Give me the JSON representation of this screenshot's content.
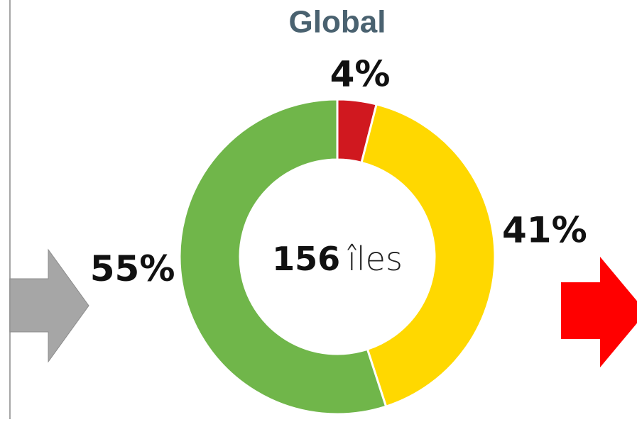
{
  "chart_data": {
    "type": "donut",
    "title": "Global",
    "categories": [
      null,
      null,
      null
    ],
    "values": [
      4,
      41,
      55
    ],
    "value_labels": [
      "4%",
      "41%",
      "55%"
    ],
    "colors": [
      "#d0181f",
      "#ffd800",
      "#70b64a"
    ],
    "center_number": 156,
    "center_text": "îles"
  }
}
